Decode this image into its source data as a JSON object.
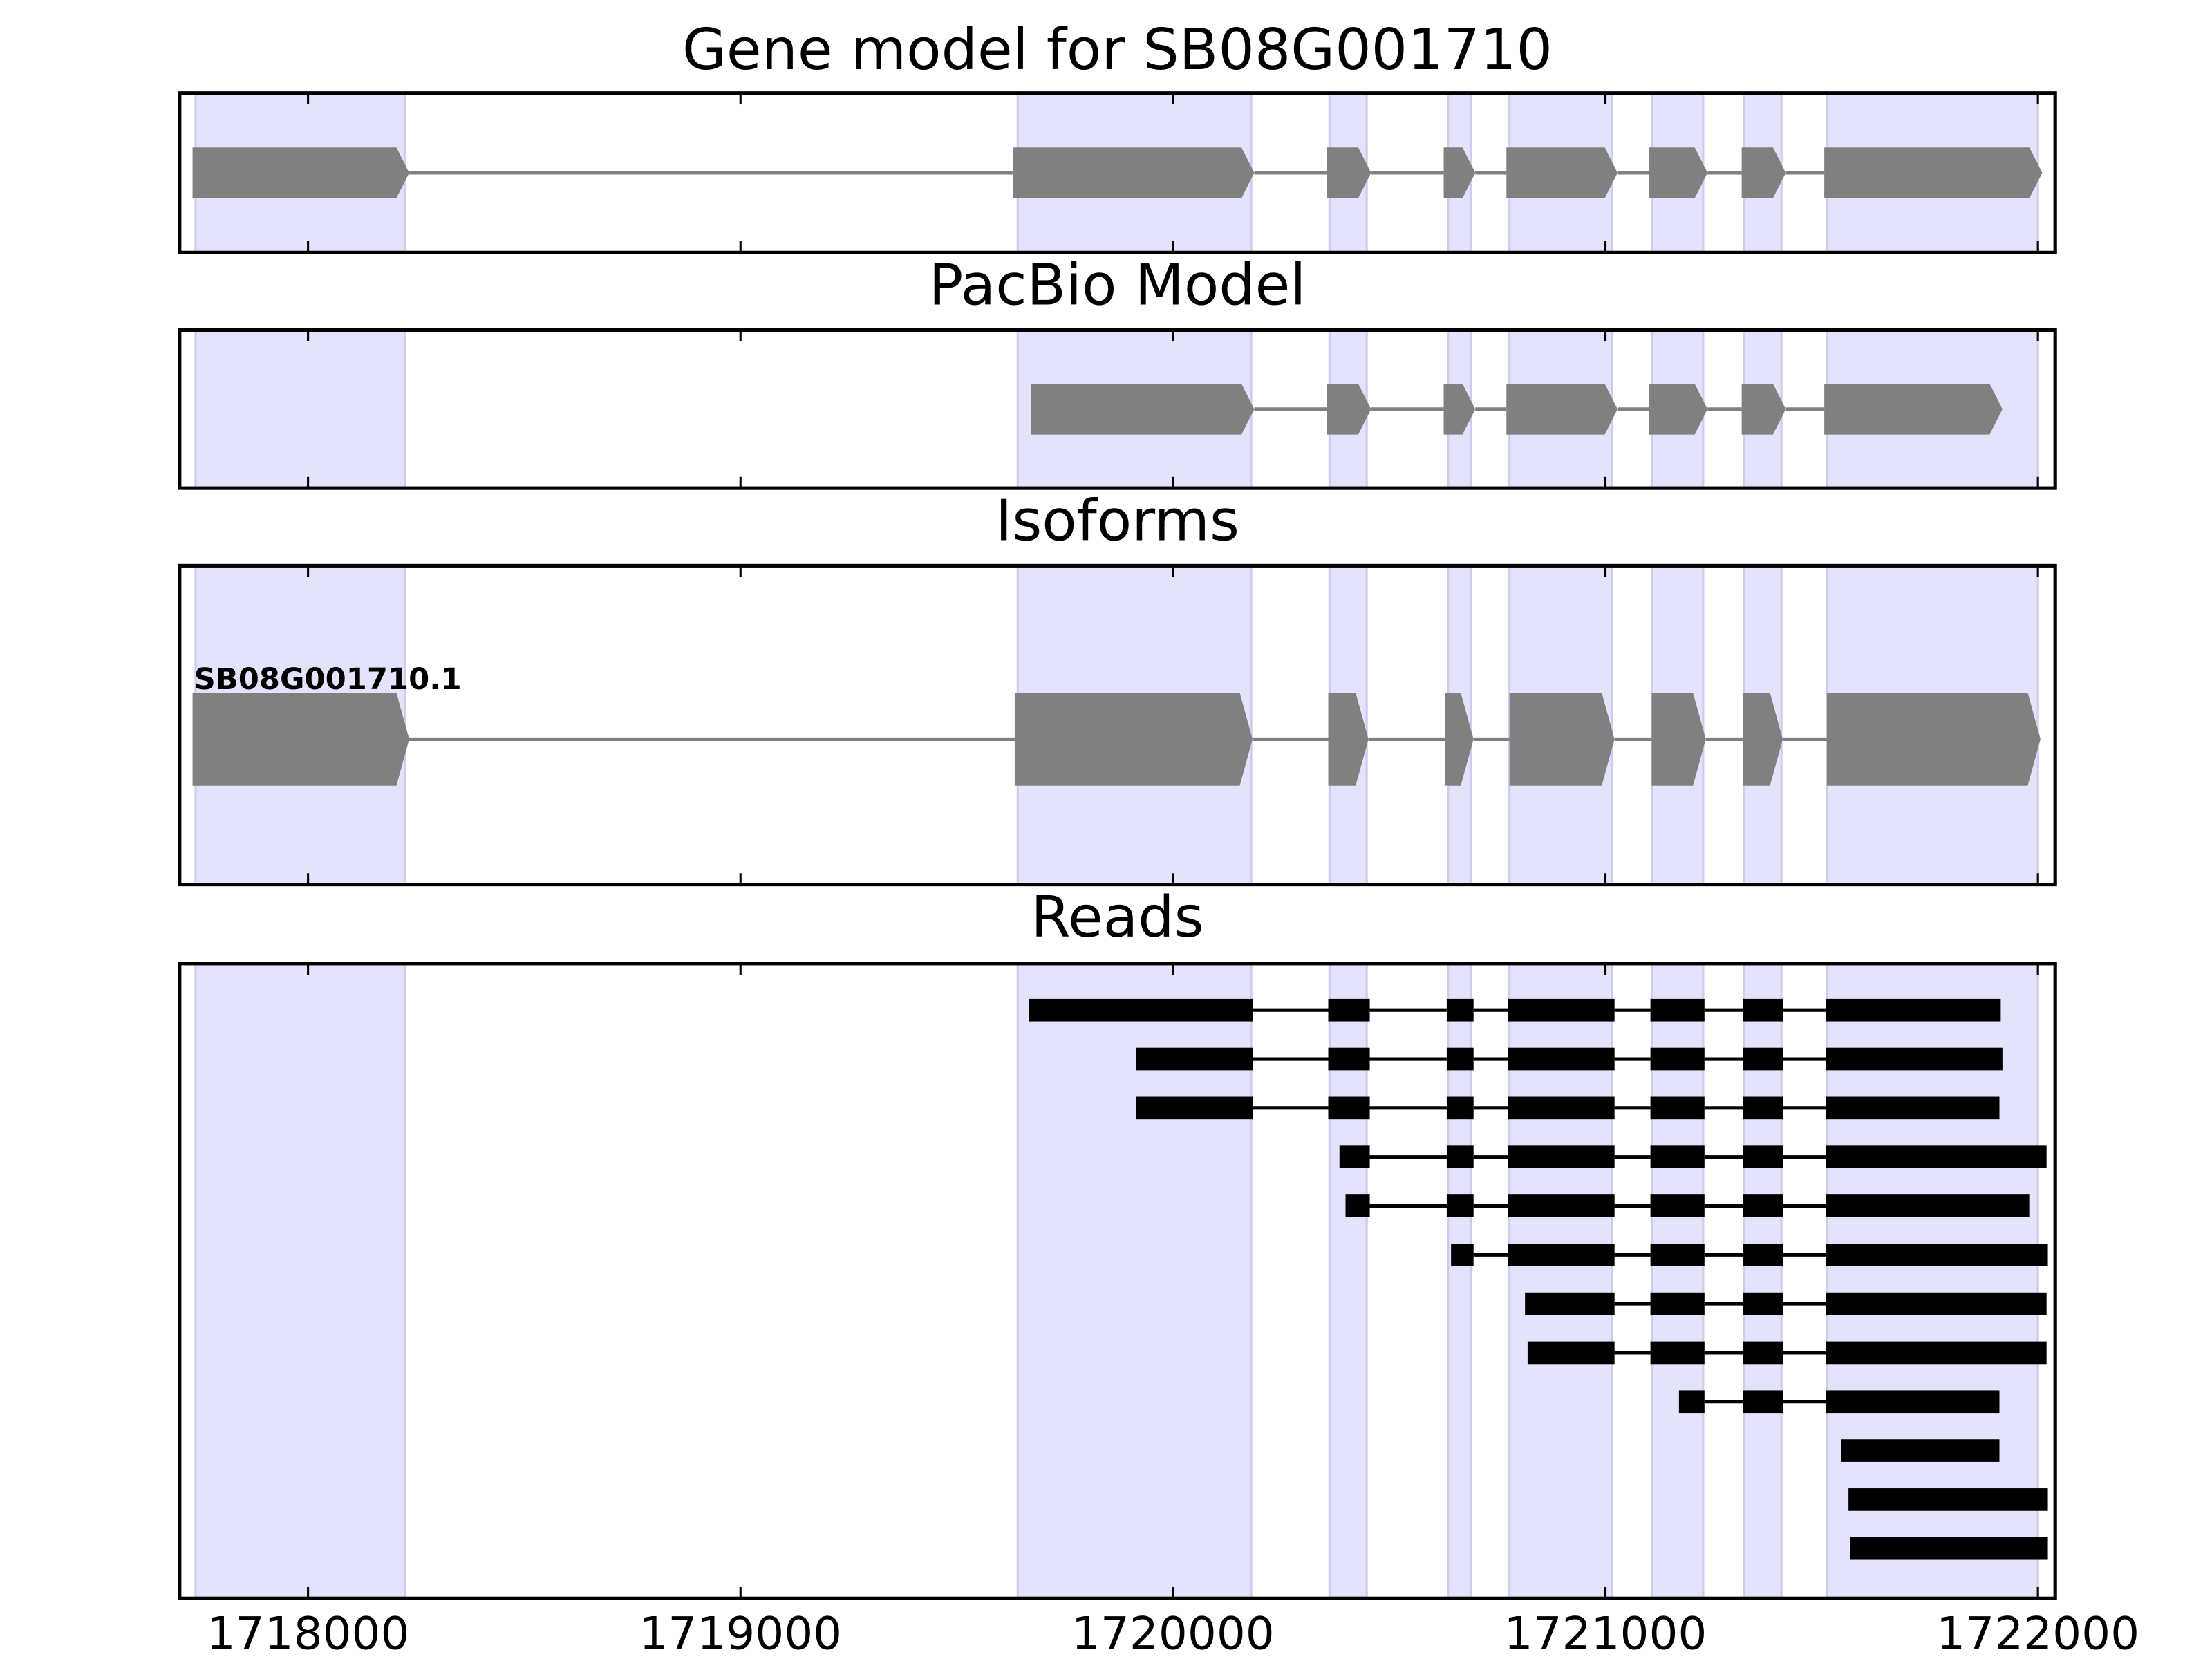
{
  "chart_data": {
    "type": "gene-tracks",
    "xlim": [
      1717703,
      1722040
    ],
    "xticks": [
      1718000,
      1719000,
      1720000,
      1721000,
      1722000
    ],
    "highlight_color": "#e3e3fb",
    "exon_color": "#808080",
    "read_color": "#000000",
    "highlights": [
      [
        1717740,
        1718224
      ],
      [
        1719641,
        1720181
      ],
      [
        1720362,
        1720448
      ],
      [
        1720636,
        1720689
      ],
      [
        1720778,
        1721015
      ],
      [
        1721107,
        1721226
      ],
      [
        1721321,
        1721407
      ],
      [
        1721512,
        1722000
      ]
    ],
    "tracks": [
      {
        "title": "Gene model for SB08G001710",
        "exons": [
          [
            1717733,
            1718234
          ],
          [
            1719631,
            1720188
          ],
          [
            1720356,
            1720458
          ],
          [
            1720626,
            1720699
          ],
          [
            1720771,
            1721028
          ],
          [
            1721101,
            1721236
          ],
          [
            1721315,
            1721417
          ],
          [
            1721506,
            1722010
          ]
        ]
      },
      {
        "title": "PacBio Model",
        "exons": [
          [
            1719671,
            1720188
          ],
          [
            1720356,
            1720458
          ],
          [
            1720626,
            1720699
          ],
          [
            1720771,
            1721028
          ],
          [
            1721101,
            1721236
          ],
          [
            1721315,
            1721417
          ],
          [
            1721506,
            1721918
          ]
        ]
      },
      {
        "title": "Isoforms",
        "isoforms": [
          {
            "name": "SB08G001710.1",
            "exons": [
              [
                1717733,
                1718234
              ],
              [
                1719634,
                1720184
              ],
              [
                1720359,
                1720452
              ],
              [
                1720630,
                1720695
              ],
              [
                1720778,
                1721021
              ],
              [
                1721107,
                1721232
              ],
              [
                1721318,
                1721410
              ],
              [
                1721512,
                1722006
              ]
            ]
          }
        ]
      },
      {
        "title": "Reads",
        "reads": [
          [
            [
              1719667,
              1720184
            ],
            [
              1720359,
              1720455
            ],
            [
              1720633,
              1720695
            ],
            [
              1720774,
              1721021
            ],
            [
              1721104,
              1721229
            ],
            [
              1721318,
              1721410
            ],
            [
              1721509,
              1721914
            ]
          ],
          [
            [
              1719914,
              1720184
            ],
            [
              1720359,
              1720455
            ],
            [
              1720633,
              1720695
            ],
            [
              1720774,
              1721021
            ],
            [
              1721104,
              1721229
            ],
            [
              1721318,
              1721410
            ],
            [
              1721509,
              1721918
            ]
          ],
          [
            [
              1719914,
              1720184
            ],
            [
              1720359,
              1720455
            ],
            [
              1720633,
              1720695
            ],
            [
              1720774,
              1721021
            ],
            [
              1721104,
              1721229
            ],
            [
              1721318,
              1721410
            ],
            [
              1721509,
              1721911
            ]
          ],
          [
            [
              1720385,
              1720455
            ],
            [
              1720633,
              1720695
            ],
            [
              1720774,
              1721021
            ],
            [
              1721104,
              1721229
            ],
            [
              1721318,
              1721410
            ],
            [
              1721509,
              1722020
            ]
          ],
          [
            [
              1720399,
              1720455
            ],
            [
              1720633,
              1720695
            ],
            [
              1720774,
              1721021
            ],
            [
              1721104,
              1721229
            ],
            [
              1721318,
              1721410
            ],
            [
              1721509,
              1721980
            ]
          ],
          [
            [
              1720643,
              1720695
            ],
            [
              1720774,
              1721021
            ],
            [
              1721104,
              1721229
            ],
            [
              1721318,
              1721410
            ],
            [
              1721509,
              1722023
            ]
          ],
          [
            [
              1720814,
              1721021
            ],
            [
              1721104,
              1721229
            ],
            [
              1721318,
              1721410
            ],
            [
              1721509,
              1722020
            ]
          ],
          [
            [
              1720820,
              1721021
            ],
            [
              1721104,
              1721229
            ],
            [
              1721318,
              1721410
            ],
            [
              1721509,
              1722020
            ]
          ],
          [
            [
              1721170,
              1721229
            ],
            [
              1721318,
              1721410
            ],
            [
              1721509,
              1721911
            ]
          ],
          [
            [
              1721545,
              1721911
            ]
          ],
          [
            [
              1721562,
              1722023
            ]
          ],
          [
            [
              1721565,
              1722023
            ]
          ]
        ]
      }
    ]
  }
}
